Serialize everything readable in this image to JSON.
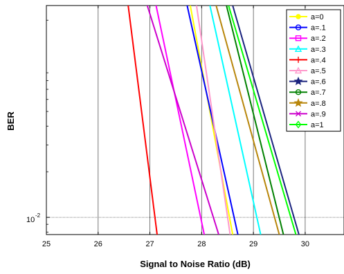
{
  "chart_data": {
    "type": "line",
    "xlabel": "Signal to Noise Ratio (dB)",
    "ylabel": "BER",
    "xlim": [
      25,
      30.75
    ],
    "x_ticks": [
      "25",
      "26",
      "27",
      "28",
      "29",
      "30"
    ],
    "y_scale": "log",
    "ylim": [
      0.0077,
      0.25
    ],
    "y_tick_label": {
      "base": "10",
      "exponent": "-2"
    },
    "grid": true,
    "legend_position": "top-right",
    "series": [
      {
        "name": "a=0",
        "color": "#ffff00",
        "marker": "dot",
        "x": [
          27.78,
          28.6
        ],
        "y": [
          0.25,
          0.0077
        ]
      },
      {
        "name": "a=.1",
        "color": "#0000ff",
        "marker": "circle",
        "x": [
          27.72,
          28.7
        ],
        "y": [
          0.25,
          0.0077
        ]
      },
      {
        "name": "a=.2",
        "color": "#ff00ff",
        "marker": "square",
        "x": [
          27.12,
          28.05
        ],
        "y": [
          0.25,
          0.0077
        ]
      },
      {
        "name": "a=.3",
        "color": "#00ffff",
        "marker": "triangle",
        "x": [
          28.16,
          29.14
        ],
        "y": [
          0.25,
          0.0077
        ]
      },
      {
        "name": "a=.4",
        "color": "#ff0000",
        "marker": "plus",
        "x": [
          26.58,
          27.14
        ],
        "y": [
          0.25,
          0.0077
        ]
      },
      {
        "name": "a=.5",
        "color": "#ff99cc",
        "marker": "triangle",
        "x": [
          27.9,
          28.55
        ],
        "y": [
          0.25,
          0.0077
        ]
      },
      {
        "name": "a=.6",
        "color": "#1a237e",
        "marker": "star",
        "x": [
          28.6,
          29.88
        ],
        "y": [
          0.25,
          0.0077
        ]
      },
      {
        "name": "a=.7",
        "color": "#008000",
        "marker": "circle",
        "x": [
          28.48,
          29.58
        ],
        "y": [
          0.25,
          0.0077
        ]
      },
      {
        "name": "a=.8",
        "color": "#b8860b",
        "marker": "star",
        "x": [
          28.28,
          29.5
        ],
        "y": [
          0.25,
          0.0077
        ]
      },
      {
        "name": "a=.9",
        "color": "#cc00cc",
        "marker": "x",
        "x": [
          26.95,
          28.33
        ],
        "y": [
          0.25,
          0.0077
        ]
      },
      {
        "name": "a=1",
        "color": "#00ff00",
        "marker": "diamond",
        "x": [
          28.52,
          29.82
        ],
        "y": [
          0.25,
          0.0077
        ]
      }
    ]
  }
}
